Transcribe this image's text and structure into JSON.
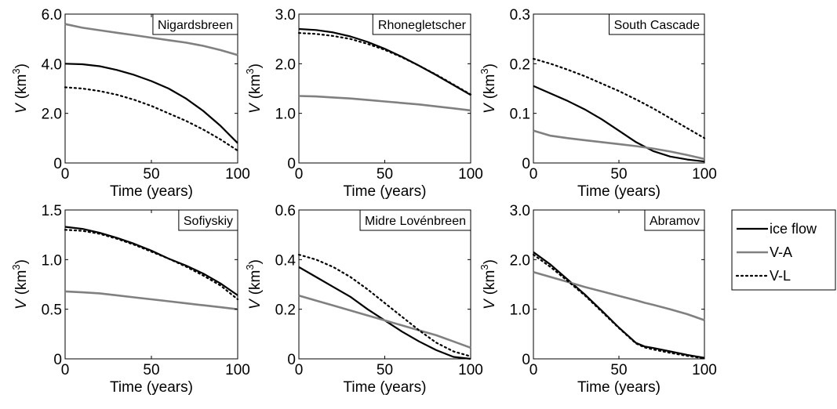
{
  "legend": {
    "placement": "right",
    "entries": [
      {
        "name": "ice flow",
        "style": "solid",
        "color": "#000000"
      },
      {
        "name": "V-A",
        "style": "solid",
        "color": "#808080"
      },
      {
        "name": "V-L",
        "style": "dotted",
        "color": "#000000"
      }
    ]
  },
  "chart_data": [
    {
      "type": "line",
      "title": "Nigardsbreen",
      "xlabel": "Time (years)",
      "ylabel_var": "V",
      "ylabel_unit": "(km",
      "ylabel_sup": "3",
      "ylabel_close": ")",
      "xlim": [
        0,
        100
      ],
      "ylim": [
        0,
        6
      ],
      "xticks": [
        "0",
        "50",
        "100"
      ],
      "yticks": [
        "0",
        "2.0",
        "4.0",
        "6.0"
      ],
      "x": [
        0,
        10,
        20,
        30,
        40,
        50,
        60,
        70,
        80,
        90,
        100
      ],
      "series": [
        {
          "name": "ice flow",
          "values": [
            4.0,
            3.98,
            3.9,
            3.75,
            3.55,
            3.3,
            3.0,
            2.6,
            2.1,
            1.5,
            0.8
          ]
        },
        {
          "name": "V-A",
          "values": [
            5.6,
            5.45,
            5.35,
            5.25,
            5.15,
            5.05,
            4.95,
            4.85,
            4.72,
            4.55,
            4.35
          ]
        },
        {
          "name": "V-L",
          "values": [
            3.05,
            3.0,
            2.9,
            2.75,
            2.55,
            2.3,
            2.0,
            1.7,
            1.35,
            0.95,
            0.5
          ]
        }
      ]
    },
    {
      "type": "line",
      "title": "Rhonegletscher",
      "xlabel": "Time (years)",
      "ylabel_var": "V",
      "ylabel_unit": "(km",
      "ylabel_sup": "3",
      "ylabel_close": ")",
      "xlim": [
        0,
        100
      ],
      "ylim": [
        0,
        3
      ],
      "xticks": [
        "0",
        "50",
        "100"
      ],
      "yticks": [
        "0",
        "1.0",
        "2.0",
        "3.0"
      ],
      "x": [
        0,
        10,
        20,
        30,
        40,
        50,
        60,
        70,
        80,
        90,
        100
      ],
      "series": [
        {
          "name": "ice flow",
          "values": [
            2.7,
            2.68,
            2.63,
            2.55,
            2.44,
            2.3,
            2.14,
            1.96,
            1.77,
            1.57,
            1.37
          ]
        },
        {
          "name": "V-A",
          "values": [
            1.35,
            1.34,
            1.32,
            1.3,
            1.27,
            1.24,
            1.21,
            1.18,
            1.14,
            1.1,
            1.06
          ]
        },
        {
          "name": "V-L",
          "values": [
            2.62,
            2.6,
            2.56,
            2.5,
            2.4,
            2.28,
            2.13,
            1.96,
            1.78,
            1.58,
            1.38
          ]
        }
      ]
    },
    {
      "type": "line",
      "title": "South Cascade",
      "xlabel": "Time (years)",
      "ylabel_var": "V",
      "ylabel_unit": "(km",
      "ylabel_sup": "3",
      "ylabel_close": ")",
      "xlim": [
        0,
        100
      ],
      "ylim": [
        0,
        0.3
      ],
      "xticks": [
        "0",
        "50",
        "100"
      ],
      "yticks": [
        "0",
        "0.1",
        "0.2",
        "0.3"
      ],
      "x": [
        0,
        10,
        20,
        30,
        40,
        50,
        60,
        70,
        80,
        90,
        100
      ],
      "series": [
        {
          "name": "ice flow",
          "values": [
            0.155,
            0.14,
            0.125,
            0.108,
            0.088,
            0.065,
            0.042,
            0.024,
            0.013,
            0.007,
            0.003
          ]
        },
        {
          "name": "V-A",
          "values": [
            0.065,
            0.055,
            0.05,
            0.046,
            0.042,
            0.038,
            0.034,
            0.029,
            0.023,
            0.016,
            0.008
          ]
        },
        {
          "name": "V-L",
          "values": [
            0.21,
            0.2,
            0.188,
            0.175,
            0.16,
            0.145,
            0.128,
            0.11,
            0.09,
            0.07,
            0.05
          ]
        }
      ]
    },
    {
      "type": "line",
      "title": "Sofiyskiy",
      "xlabel": "Time (years)",
      "ylabel_var": "V",
      "ylabel_unit": "(km",
      "ylabel_sup": "3",
      "ylabel_close": ")",
      "xlim": [
        0,
        100
      ],
      "ylim": [
        0,
        1.5
      ],
      "xticks": [
        "0",
        "50",
        "100"
      ],
      "yticks": [
        "0",
        "0.5",
        "1.0",
        "1.5"
      ],
      "x": [
        0,
        10,
        20,
        30,
        40,
        50,
        60,
        70,
        80,
        90,
        100
      ],
      "series": [
        {
          "name": "ice flow",
          "values": [
            1.33,
            1.31,
            1.27,
            1.22,
            1.16,
            1.09,
            1.01,
            0.94,
            0.86,
            0.76,
            0.64
          ]
        },
        {
          "name": "V-A",
          "values": [
            0.68,
            0.67,
            0.66,
            0.64,
            0.62,
            0.6,
            0.58,
            0.56,
            0.54,
            0.52,
            0.5
          ]
        },
        {
          "name": "V-L",
          "values": [
            1.3,
            1.29,
            1.26,
            1.21,
            1.15,
            1.08,
            1.01,
            0.93,
            0.84,
            0.74,
            0.6
          ]
        }
      ]
    },
    {
      "type": "line",
      "title": "Midre Lovénbreen",
      "xlabel": "Time (years)",
      "ylabel_var": "V",
      "ylabel_unit": "(km",
      "ylabel_sup": "3",
      "ylabel_close": ")",
      "xlim": [
        0,
        100
      ],
      "ylim": [
        0,
        0.6
      ],
      "xticks": [
        "0",
        "50",
        "100"
      ],
      "yticks": [
        "0",
        "0.2",
        "0.4",
        "0.6"
      ],
      "x": [
        0,
        10,
        20,
        30,
        40,
        50,
        60,
        70,
        80,
        90,
        100
      ],
      "series": [
        {
          "name": "ice flow",
          "values": [
            0.37,
            0.33,
            0.29,
            0.25,
            0.2,
            0.155,
            0.11,
            0.07,
            0.035,
            0.008,
            0.0
          ]
        },
        {
          "name": "V-A",
          "values": [
            0.255,
            0.235,
            0.215,
            0.195,
            0.175,
            0.155,
            0.135,
            0.115,
            0.095,
            0.07,
            0.045
          ]
        },
        {
          "name": "V-L",
          "values": [
            0.42,
            0.4,
            0.37,
            0.33,
            0.28,
            0.225,
            0.17,
            0.115,
            0.065,
            0.03,
            0.01
          ]
        }
      ]
    },
    {
      "type": "line",
      "title": "Abramov",
      "xlabel": "Time (years)",
      "ylabel_var": "V",
      "ylabel_unit": "(km",
      "ylabel_sup": "3",
      "ylabel_close": ")",
      "xlim": [
        0,
        100
      ],
      "ylim": [
        0,
        3
      ],
      "xticks": [
        "0",
        "50",
        "100"
      ],
      "yticks": [
        "0",
        "1.0",
        "2.0",
        "3.0"
      ],
      "x": [
        0,
        10,
        20,
        30,
        40,
        50,
        60,
        65,
        70,
        80,
        90,
        100
      ],
      "series": [
        {
          "name": "ice flow",
          "values": [
            2.15,
            1.9,
            1.6,
            1.3,
            0.97,
            0.63,
            0.32,
            0.25,
            0.22,
            0.15,
            0.08,
            0.02
          ]
        },
        {
          "name": "V-A",
          "values": [
            1.75,
            1.65,
            1.55,
            1.45,
            1.36,
            1.27,
            1.18,
            1.13,
            1.09,
            1.0,
            0.9,
            0.78
          ]
        },
        {
          "name": "V-L",
          "values": [
            2.1,
            1.85,
            1.57,
            1.28,
            0.95,
            0.62,
            0.31,
            0.23,
            0.19,
            0.12,
            0.06,
            0.01
          ]
        }
      ]
    }
  ]
}
